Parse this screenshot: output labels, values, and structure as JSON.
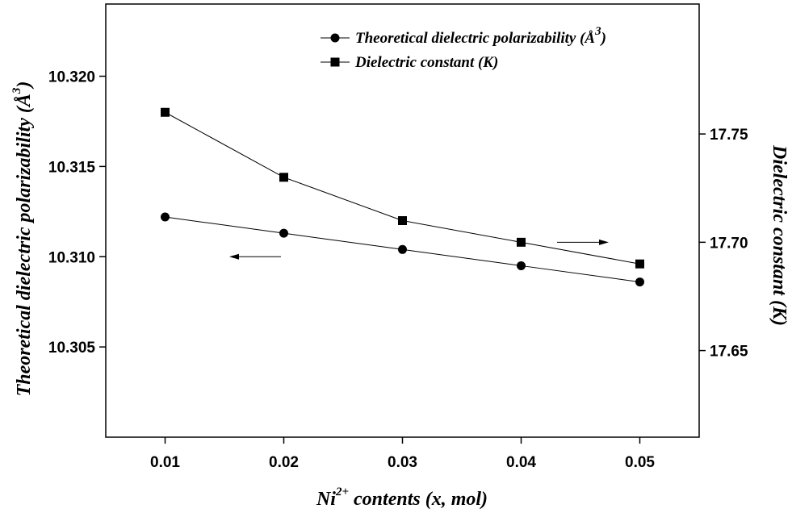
{
  "chart_data": {
    "type": "line",
    "x": [
      0.01,
      0.02,
      0.03,
      0.04,
      0.05
    ],
    "x_tick_labels": [
      "0.01",
      "0.02",
      "0.03",
      "0.04",
      "0.05"
    ],
    "xlim": [
      0.005,
      0.055
    ],
    "xlabel": {
      "main": "Ni",
      "sup": "2+",
      "rest": " contents (x, mol)"
    },
    "y_left": {
      "label": {
        "main": "Theoretical dielectric polarizability (",
        "unit": "Å",
        "sup": "3",
        "close": ")"
      },
      "lim": [
        10.3,
        10.324
      ],
      "ticks": [
        10.305,
        10.31,
        10.315,
        10.32
      ],
      "tick_labels": [
        "10.305",
        "10.310",
        "10.315",
        "10.320"
      ]
    },
    "y_right": {
      "label": "Dielectric constant (K)",
      "lim": [
        17.61,
        17.81
      ],
      "ticks": [
        17.65,
        17.7,
        17.75
      ],
      "tick_labels": [
        "17.65",
        "17.70",
        "17.75"
      ]
    },
    "series": [
      {
        "name": {
          "main": "Theoretical dielectric polarizability (",
          "unit": "Å",
          "sup": "3",
          "close": ")"
        },
        "axis": "left",
        "marker": "circle",
        "values": [
          10.3122,
          10.3113,
          10.3104,
          10.3095,
          10.3086
        ]
      },
      {
        "name": {
          "main": "Dielectric constant (K)"
        },
        "axis": "right",
        "marker": "square",
        "values": [
          17.76,
          17.73,
          17.71,
          17.7,
          17.69
        ]
      }
    ],
    "legend_position": "top-right",
    "grid": false
  }
}
